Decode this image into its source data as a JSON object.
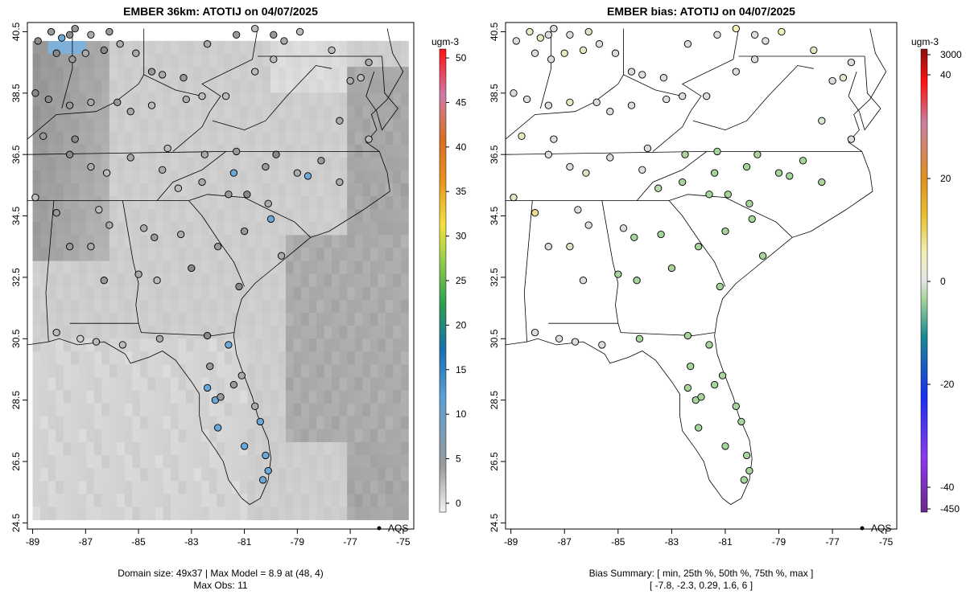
{
  "left_panel": {
    "title": "EMBER 36km: ATOTIJ on 04/07/2025",
    "caption_line1": "Domain size: 49x37 | Max Model = 8.9 at (48, 4)",
    "caption_line2": "Max Obs: 11",
    "legend_marker": "AQS",
    "colorbar": {
      "unit": "ugm-3",
      "ticks": [
        "0",
        "5",
        "10",
        "15",
        "20",
        "25",
        "30",
        "35",
        "40",
        "45",
        "50"
      ]
    }
  },
  "right_panel": {
    "title": "EMBER bias: ATOTIJ on 04/07/2025",
    "caption_line1": "Bias Summary: [ min, 25th %, 50th %, 75th %, max ]",
    "caption_line2": "[ -7.8,   -2.3,   0.29,   1.6,   6 ]",
    "legend_marker": "AQS",
    "colorbar": {
      "unit": "ugm-3",
      "ticks": [
        "3000",
        "40",
        "20",
        "0",
        "-20",
        "-40",
        "-450"
      ]
    }
  },
  "axes": {
    "x_ticks": [
      "-89",
      "-87",
      "-85",
      "-83",
      "-81",
      "-79",
      "-77",
      "-75"
    ],
    "y_ticks": [
      "40.5",
      "38.5",
      "36.5",
      "34.5",
      "32.5",
      "30.5",
      "28.5",
      "26.5",
      "24.5"
    ]
  },
  "colors": {
    "model_gray_dark": "#9a9a9a",
    "model_gray_light": "#e6e6e6",
    "bias_positive": "#f0f0b8",
    "bias_negative": "#a6d49a",
    "site_blue": "#6aa8d8"
  },
  "sites": {
    "left": [
      [
        -88.8,
        40.2,
        "#8c8c8c"
      ],
      [
        -88.3,
        40.5,
        "#999"
      ],
      [
        -87.9,
        40.3,
        "#6aa8d8"
      ],
      [
        -87.6,
        40.4,
        "#8c8c8c"
      ],
      [
        -87.4,
        40.6,
        "#999"
      ],
      [
        -86.8,
        40.4,
        "#aaa"
      ],
      [
        -86.1,
        40.5,
        "#999"
      ],
      [
        -85.7,
        40.1,
        "#aaa"
      ],
      [
        -88.1,
        39.8,
        "#888"
      ],
      [
        -87.5,
        39.6,
        "#999"
      ],
      [
        -87.0,
        39.8,
        "#aaa"
      ],
      [
        -86.3,
        39.9,
        "#888"
      ],
      [
        -85.1,
        39.8,
        "#aaa"
      ],
      [
        -84.5,
        39.2,
        "#999"
      ],
      [
        -84.1,
        39.1,
        "#aaa"
      ],
      [
        -83.3,
        39.0,
        "#999"
      ],
      [
        -82.4,
        40.1,
        "#aaa"
      ],
      [
        -81.3,
        40.4,
        "#999"
      ],
      [
        -80.6,
        40.6,
        "#bbb"
      ],
      [
        -79.9,
        40.4,
        "#999"
      ],
      [
        -79.5,
        40.2,
        "#aaa"
      ],
      [
        -78.9,
        40.5,
        "#bbb"
      ],
      [
        -77.7,
        39.9,
        "#bbb"
      ],
      [
        -77.0,
        38.9,
        "#aaa"
      ],
      [
        -76.6,
        39.0,
        "#bbb"
      ],
      [
        -76.3,
        39.5,
        "#aaa"
      ],
      [
        -88.9,
        38.5,
        "#888"
      ],
      [
        -88.4,
        38.3,
        "#888"
      ],
      [
        -87.6,
        38.1,
        "#999"
      ],
      [
        -86.8,
        38.2,
        "#aaa"
      ],
      [
        -85.8,
        38.2,
        "#999"
      ],
      [
        -85.3,
        37.9,
        "#aaa"
      ],
      [
        -84.5,
        38.1,
        "#bbb"
      ],
      [
        -83.2,
        38.3,
        "#aaa"
      ],
      [
        -82.6,
        38.4,
        "#bbb"
      ],
      [
        -81.7,
        38.4,
        "#bbb"
      ],
      [
        -80.6,
        39.2,
        "#bbb"
      ],
      [
        -79.9,
        39.6,
        "#bbb"
      ],
      [
        -77.4,
        37.6,
        "#aaa"
      ],
      [
        -76.3,
        37.0,
        "#bbb"
      ],
      [
        -88.6,
        37.1,
        "#999"
      ],
      [
        -87.4,
        37.0,
        "#888"
      ],
      [
        -87.6,
        36.5,
        "#888"
      ],
      [
        -86.8,
        36.1,
        "#aaa"
      ],
      [
        -86.2,
        35.9,
        "#bbb"
      ],
      [
        -85.3,
        36.4,
        "#aaa"
      ],
      [
        -84.1,
        36.0,
        "#aaa"
      ],
      [
        -83.9,
        36.7,
        "#bbb"
      ],
      [
        -82.5,
        36.5,
        "#aaa"
      ],
      [
        -81.3,
        36.6,
        "#999"
      ],
      [
        -80.2,
        36.1,
        "#999"
      ],
      [
        -79.8,
        36.5,
        "#888"
      ],
      [
        -79.0,
        35.9,
        "#aaa"
      ],
      [
        -78.6,
        35.8,
        "#6aa8d8"
      ],
      [
        -78.1,
        36.3,
        "#999"
      ],
      [
        -77.4,
        35.6,
        "#aaa"
      ],
      [
        -81.4,
        35.9,
        "#6aa8d8"
      ],
      [
        -80.9,
        35.2,
        "#888"
      ],
      [
        -81.6,
        35.2,
        "#999"
      ],
      [
        -82.6,
        35.6,
        "#aaa"
      ],
      [
        -83.5,
        35.4,
        "#bbb"
      ],
      [
        -80.1,
        34.9,
        "#aaa"
      ],
      [
        -88.9,
        35.1,
        "#bbb"
      ],
      [
        -88.1,
        34.6,
        "#999"
      ],
      [
        -86.5,
        34.7,
        "#bbb"
      ],
      [
        -87.6,
        33.5,
        "#999"
      ],
      [
        -86.8,
        33.5,
        "#aaa"
      ],
      [
        -86.1,
        34.2,
        "#aaa"
      ],
      [
        -84.8,
        34.1,
        "#aaa"
      ],
      [
        -84.4,
        33.8,
        "#999"
      ],
      [
        -83.4,
        33.9,
        "#aaa"
      ],
      [
        -82.0,
        33.5,
        "#999"
      ],
      [
        -81.0,
        34.0,
        "#999"
      ],
      [
        -80.0,
        34.4,
        "#6aa8d8"
      ],
      [
        -79.6,
        33.2,
        "#aaa"
      ],
      [
        -81.2,
        32.2,
        "#888"
      ],
      [
        -83.0,
        32.8,
        "#888"
      ],
      [
        -84.3,
        32.4,
        "#bbb"
      ],
      [
        -85.0,
        32.6,
        "#aaa"
      ],
      [
        -86.3,
        32.4,
        "#999"
      ],
      [
        -88.1,
        30.7,
        "#bbb"
      ],
      [
        -87.2,
        30.5,
        "#ccc"
      ],
      [
        -86.6,
        30.4,
        "#bbb"
      ],
      [
        -85.6,
        30.3,
        "#bbb"
      ],
      [
        -84.2,
        30.5,
        "#aaa"
      ],
      [
        -82.4,
        30.6,
        "#888"
      ],
      [
        -81.6,
        30.3,
        "#6aa8d8"
      ],
      [
        -81.1,
        29.3,
        "#aaa"
      ],
      [
        -81.4,
        29.0,
        "#999"
      ],
      [
        -82.3,
        29.6,
        "#999"
      ],
      [
        -82.4,
        28.9,
        "#6aa8d8"
      ],
      [
        -82.1,
        28.5,
        "#6aa8d8"
      ],
      [
        -81.9,
        28.6,
        "#999"
      ],
      [
        -80.6,
        28.3,
        "#aaa"
      ],
      [
        -80.4,
        27.8,
        "#6aa8d8"
      ],
      [
        -81.0,
        27.0,
        "#6aa8d8"
      ],
      [
        -80.2,
        26.7,
        "#6aa8d8"
      ],
      [
        -80.1,
        26.2,
        "#6aa8d8"
      ],
      [
        -80.3,
        25.9,
        "#6aa8d8"
      ],
      [
        -82.0,
        27.6,
        "#6aa8d8"
      ]
    ],
    "right": [
      [
        -88.8,
        40.2,
        "#ddd"
      ],
      [
        -88.3,
        40.5,
        "#e8e8c0"
      ],
      [
        -87.9,
        40.3,
        "#e8e8c0"
      ],
      [
        -87.6,
        40.4,
        "#ddd"
      ],
      [
        -87.4,
        40.6,
        "#ddd"
      ],
      [
        -86.8,
        40.4,
        "#ddd"
      ],
      [
        -86.1,
        40.5,
        "#e0e0c8"
      ],
      [
        -85.7,
        40.1,
        "#ddd"
      ],
      [
        -88.1,
        39.8,
        "#ddd"
      ],
      [
        -87.5,
        39.6,
        "#ddd"
      ],
      [
        -87.0,
        39.8,
        "#e8e8c0"
      ],
      [
        -86.3,
        39.9,
        "#e8e8c0"
      ],
      [
        -85.1,
        39.8,
        "#ddd"
      ],
      [
        -84.5,
        39.2,
        "#ddd"
      ],
      [
        -84.1,
        39.1,
        "#ddd"
      ],
      [
        -83.3,
        39.0,
        "#ddd"
      ],
      [
        -82.4,
        40.1,
        "#ddd"
      ],
      [
        -81.3,
        40.4,
        "#ddd"
      ],
      [
        -80.6,
        40.6,
        "#f0f0b8"
      ],
      [
        -79.9,
        40.4,
        "#ddd"
      ],
      [
        -79.5,
        40.2,
        "#ddd"
      ],
      [
        -78.9,
        40.5,
        "#f0f0b8"
      ],
      [
        -77.7,
        39.9,
        "#e8e8c0"
      ],
      [
        -77.0,
        38.9,
        "#ddd"
      ],
      [
        -76.6,
        39.0,
        "#dde8d0"
      ],
      [
        -76.3,
        39.5,
        "#ddd"
      ],
      [
        -88.9,
        38.5,
        "#ddd"
      ],
      [
        -88.4,
        38.3,
        "#ddd"
      ],
      [
        -87.6,
        38.1,
        "#ddd"
      ],
      [
        -86.8,
        38.2,
        "#e8e8c0"
      ],
      [
        -85.8,
        38.2,
        "#ddd"
      ],
      [
        -85.3,
        37.9,
        "#ddd"
      ],
      [
        -84.5,
        38.1,
        "#ddd"
      ],
      [
        -83.2,
        38.3,
        "#ddd"
      ],
      [
        -82.6,
        38.4,
        "#ddd"
      ],
      [
        -81.7,
        38.4,
        "#ddd"
      ],
      [
        -80.6,
        39.2,
        "#ddd"
      ],
      [
        -79.9,
        39.6,
        "#ddd"
      ],
      [
        -77.4,
        37.6,
        "#d8e8d0"
      ],
      [
        -76.3,
        37.0,
        "#ddd"
      ],
      [
        -88.6,
        37.1,
        "#e8e8c0"
      ],
      [
        -87.4,
        37.0,
        "#ddd"
      ],
      [
        -87.6,
        36.5,
        "#ddd"
      ],
      [
        -86.8,
        36.1,
        "#ddd"
      ],
      [
        -86.2,
        35.9,
        "#e0e0c8"
      ],
      [
        -85.3,
        36.4,
        "#ddd"
      ],
      [
        -84.1,
        36.0,
        "#ddd"
      ],
      [
        -83.9,
        36.7,
        "#ddd"
      ],
      [
        -82.5,
        36.5,
        "#a6d49a"
      ],
      [
        -81.3,
        36.6,
        "#a6d49a"
      ],
      [
        -80.2,
        36.1,
        "#a6d49a"
      ],
      [
        -79.8,
        36.5,
        "#a6d49a"
      ],
      [
        -79.0,
        35.9,
        "#a6d49a"
      ],
      [
        -78.6,
        35.8,
        "#a6d49a"
      ],
      [
        -78.1,
        36.3,
        "#a6d49a"
      ],
      [
        -77.4,
        35.6,
        "#a6d49a"
      ],
      [
        -81.4,
        35.9,
        "#a6d49a"
      ],
      [
        -80.9,
        35.2,
        "#a6d49a"
      ],
      [
        -81.6,
        35.2,
        "#a6d49a"
      ],
      [
        -82.6,
        35.6,
        "#a6d49a"
      ],
      [
        -83.5,
        35.4,
        "#b8dcae"
      ],
      [
        -80.1,
        34.9,
        "#a6d49a"
      ],
      [
        -88.9,
        35.1,
        "#e8e8c0"
      ],
      [
        -88.1,
        34.6,
        "#ecdc90"
      ],
      [
        -86.5,
        34.7,
        "#ddd"
      ],
      [
        -87.6,
        33.5,
        "#ddd"
      ],
      [
        -86.8,
        33.5,
        "#e0e0c8"
      ],
      [
        -86.1,
        34.2,
        "#ddd"
      ],
      [
        -84.8,
        34.1,
        "#ddd"
      ],
      [
        -84.4,
        33.8,
        "#a6d49a"
      ],
      [
        -83.4,
        33.9,
        "#a6d49a"
      ],
      [
        -82.0,
        33.5,
        "#a6d49a"
      ],
      [
        -81.0,
        34.0,
        "#a6d49a"
      ],
      [
        -80.0,
        34.4,
        "#a6d49a"
      ],
      [
        -79.6,
        33.2,
        "#a6d49a"
      ],
      [
        -81.2,
        32.2,
        "#a6d49a"
      ],
      [
        -83.0,
        32.8,
        "#a6d49a"
      ],
      [
        -84.3,
        32.4,
        "#a6d49a"
      ],
      [
        -85.0,
        32.6,
        "#a6d49a"
      ],
      [
        -86.3,
        32.4,
        "#ddd"
      ],
      [
        -88.1,
        30.7,
        "#ddd"
      ],
      [
        -87.2,
        30.5,
        "#ddd"
      ],
      [
        -86.6,
        30.4,
        "#ddd"
      ],
      [
        -85.6,
        30.3,
        "#ddd"
      ],
      [
        -84.2,
        30.5,
        "#a6d49a"
      ],
      [
        -82.4,
        30.6,
        "#a6d49a"
      ],
      [
        -81.6,
        30.3,
        "#a6d49a"
      ],
      [
        -81.1,
        29.3,
        "#a6d49a"
      ],
      [
        -81.4,
        29.0,
        "#a6d49a"
      ],
      [
        -82.3,
        29.6,
        "#a6d49a"
      ],
      [
        -82.4,
        28.9,
        "#a6d49a"
      ],
      [
        -82.1,
        28.5,
        "#a6d49a"
      ],
      [
        -81.9,
        28.6,
        "#a6d49a"
      ],
      [
        -80.6,
        28.3,
        "#a6d49a"
      ],
      [
        -80.4,
        27.8,
        "#a6d49a"
      ],
      [
        -81.0,
        27.0,
        "#a6d49a"
      ],
      [
        -80.2,
        26.7,
        "#a6d49a"
      ],
      [
        -80.1,
        26.2,
        "#a6d49a"
      ],
      [
        -80.3,
        25.9,
        "#a6d49a"
      ],
      [
        -82.0,
        27.6,
        "#a6d49a"
      ]
    ]
  }
}
